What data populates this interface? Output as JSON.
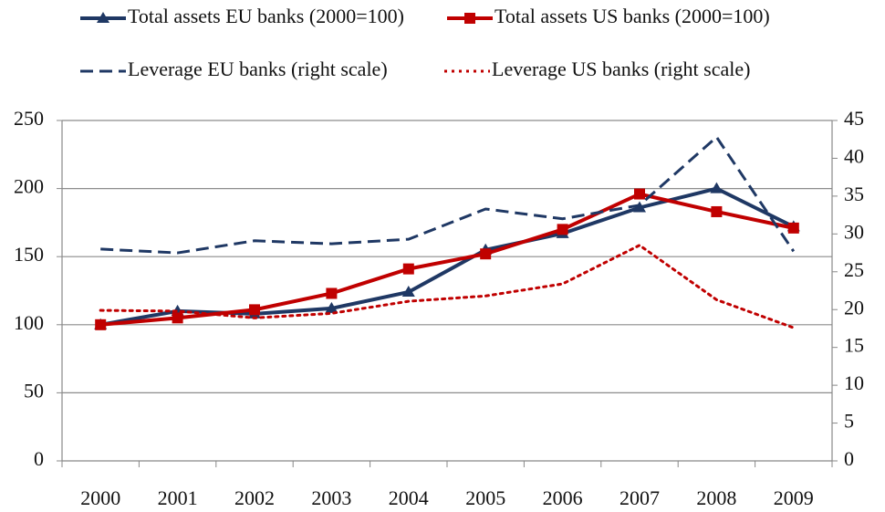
{
  "chart_data": {
    "type": "line",
    "categories": [
      "2000",
      "2001",
      "2002",
      "2003",
      "2004",
      "2005",
      "2006",
      "2007",
      "2008",
      "2009"
    ],
    "series": [
      {
        "name": "Total assets EU banks (2000=100)",
        "color": "#1f3864",
        "line_style": "solid",
        "marker": "triangle",
        "values": [
          100,
          110,
          108,
          112,
          124,
          155,
          167,
          186,
          200,
          172
        ]
      },
      {
        "name": "Total assets US banks (2000=100)",
        "color": "#c00000",
        "line_style": "solid",
        "marker": "square",
        "values": [
          100,
          105,
          111,
          123,
          141,
          152,
          170,
          196,
          183,
          171
        ]
      },
      {
        "name": "Leverage EU banks (right scale)",
        "color": "#1f3864",
        "line_style": "dashed",
        "axis": "y2",
        "values": [
          28.0,
          27.5,
          29.1,
          28.7,
          29.3,
          33.3,
          32.0,
          33.8,
          42.8,
          27.7
        ]
      },
      {
        "name": "Leverage US banks (right scale)",
        "color": "#c00000",
        "line_style": "dotted",
        "axis": "y2",
        "values": [
          19.9,
          19.8,
          18.9,
          19.5,
          21.1,
          21.8,
          23.4,
          28.5,
          21.3,
          17.6
        ]
      }
    ],
    "ylim": [
      0,
      250
    ],
    "yticks": [
      0,
      50,
      100,
      150,
      200,
      250
    ],
    "y2lim": [
      0,
      45
    ],
    "y2ticks": [
      0,
      5,
      10,
      15,
      20,
      25,
      30,
      35,
      40,
      45
    ],
    "grid": true
  }
}
